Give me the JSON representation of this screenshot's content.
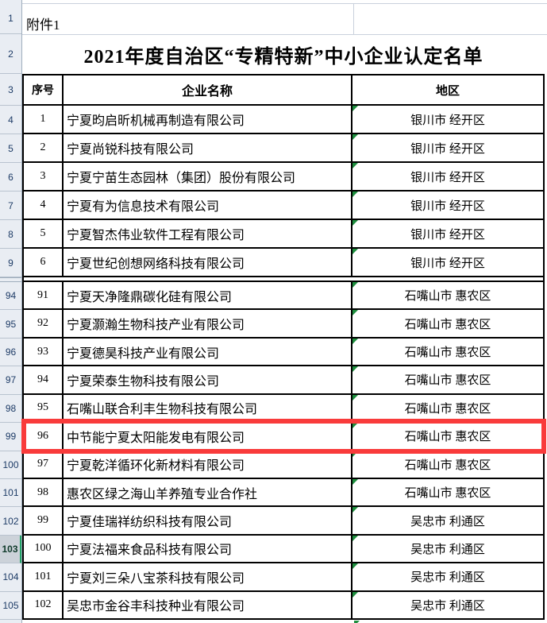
{
  "sheet": {
    "attachment_label": "附件1",
    "title": "2021年度自治区“专精特新”中小企业认定名单",
    "columns": {
      "seq": "序号",
      "name": "企业名称",
      "region": "地区"
    },
    "gutter_rows_top": [
      "1",
      "2",
      "3"
    ],
    "selected_gutter_row": "103",
    "highlight_annotation": {
      "around_sheet_row": "99",
      "color": "#f93b3b"
    },
    "error_indicator_color": "#1e8e3e",
    "selection_accent_color": "#21a366",
    "rows": [
      {
        "gutter": "4",
        "seq": "1",
        "name": "宁夏昀启昕机械再制造有限公司",
        "region": "银川市 经开区"
      },
      {
        "gutter": "5",
        "seq": "2",
        "name": "宁夏尚锐科技有限公司",
        "region": "银川市 经开区"
      },
      {
        "gutter": "6",
        "seq": "3",
        "name": "宁夏宁苗生态园林（集团）股份有限公司",
        "region": "银川市 经开区"
      },
      {
        "gutter": "7",
        "seq": "4",
        "name": "宁夏有为信息技术有限公司",
        "region": "银川市 经开区"
      },
      {
        "gutter": "8",
        "seq": "5",
        "name": "宁夏智杰伟业软件工程有限公司",
        "region": "银川市 经开区"
      },
      {
        "gutter": "9",
        "seq": "6",
        "name": "宁夏世纪创想网络科技有限公司",
        "region": "银川市 经开区"
      },
      {
        "gutter": "94",
        "seq": "91",
        "name": "宁夏天净隆鼎碳化硅有限公司",
        "region": "石嘴山市 惠农区"
      },
      {
        "gutter": "95",
        "seq": "92",
        "name": "宁夏灏瀚生物科技产业有限公司",
        "region": "石嘴山市 惠农区"
      },
      {
        "gutter": "96",
        "seq": "93",
        "name": "宁夏德昊科技产业有限公司",
        "region": "石嘴山市 惠农区"
      },
      {
        "gutter": "97",
        "seq": "94",
        "name": "宁夏荣泰生物科技有限公司",
        "region": "石嘴山市 惠农区"
      },
      {
        "gutter": "98",
        "seq": "95",
        "name": "石嘴山联合利丰生物科技有限公司",
        "region": "石嘴山市 惠农区"
      },
      {
        "gutter": "99",
        "seq": "96",
        "name": "中节能宁夏太阳能发电有限公司",
        "region": "石嘴山市 惠农区",
        "highlighted": true
      },
      {
        "gutter": "100",
        "seq": "97",
        "name": "宁夏乾洋循环化新材料有限公司",
        "region": "石嘴山市 惠农区"
      },
      {
        "gutter": "101",
        "seq": "98",
        "name": "惠农区绿之海山羊养殖专业合作社",
        "region": "石嘴山市 惠农区"
      },
      {
        "gutter": "102",
        "seq": "99",
        "name": "宁夏佳瑞祥纺织科技有限公司",
        "region": "吴忠市 利通区"
      },
      {
        "gutter": "103",
        "seq": "100",
        "name": "宁夏法福来食品科技有限公司",
        "region": "吴忠市 利通区",
        "selected_gutter": true
      },
      {
        "gutter": "104",
        "seq": "101",
        "name": "宁夏刘三朵八宝茶科技有限公司",
        "region": "吴忠市 利通区"
      },
      {
        "gutter": "105",
        "seq": "102",
        "name": "吴忠市金谷丰科技种业有限公司",
        "region": "吴忠市 利通区"
      }
    ]
  }
}
